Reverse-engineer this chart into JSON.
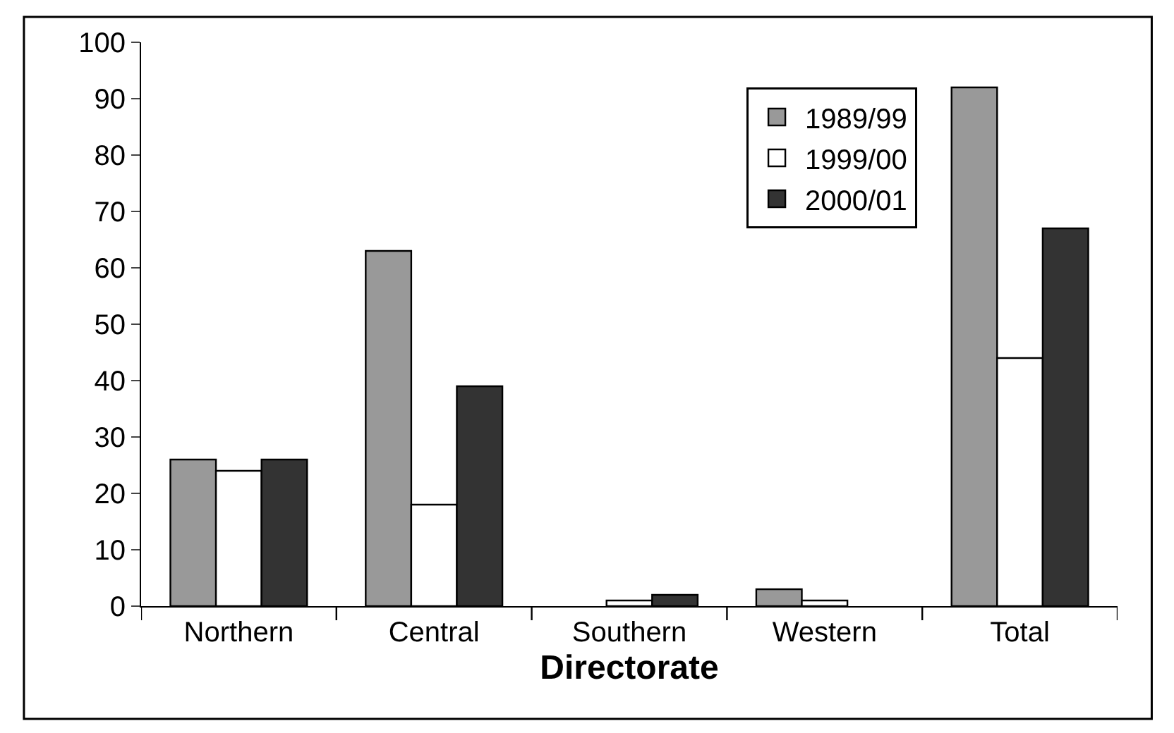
{
  "chart_data": {
    "type": "bar",
    "xlabel": "Directorate",
    "categories": [
      "Northern",
      "Central",
      "Southern",
      "Western",
      "Total"
    ],
    "series": [
      {
        "name": "1989/99",
        "color": "#999999",
        "values": [
          26,
          63,
          0,
          3,
          92
        ]
      },
      {
        "name": "1999/00",
        "color": "#ffffff",
        "values": [
          24,
          18,
          1,
          1,
          44
        ]
      },
      {
        "name": "2000/01",
        "color": "#333333",
        "values": [
          26,
          39,
          2,
          0,
          67
        ]
      }
    ],
    "ylim": [
      0,
      100
    ],
    "yticks": [
      0,
      10,
      20,
      30,
      40,
      50,
      60,
      70,
      80,
      90,
      100
    ],
    "legend": "top right"
  }
}
